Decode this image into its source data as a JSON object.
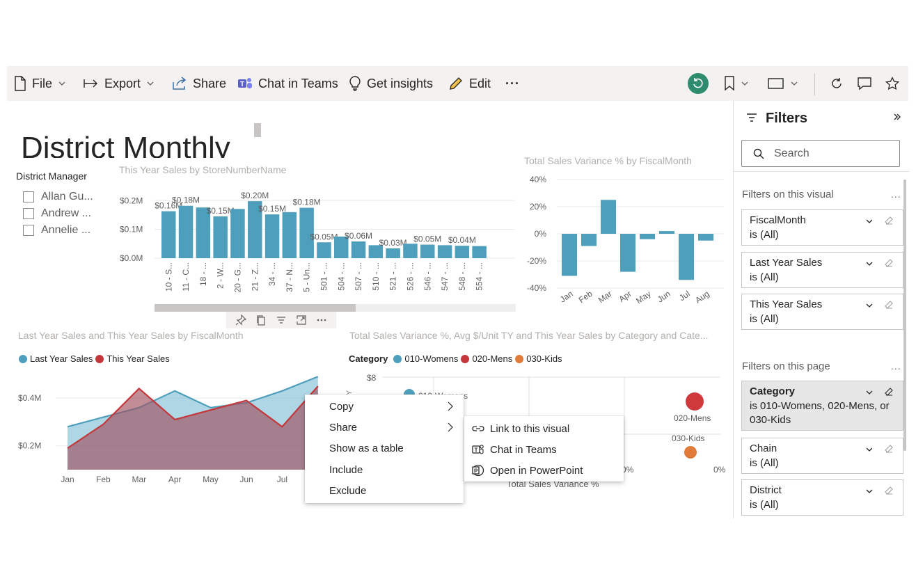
{
  "toolbar": {
    "file": "File",
    "export": "Export",
    "share": "Share",
    "chat_in_teams": "Chat in Teams",
    "get_insights": "Get insights",
    "edit": "Edit",
    "more": "···"
  },
  "colors": {
    "accent_teal": "#4e9fbc",
    "accent_red": "#c4373a",
    "accent_orange": "#e07b39",
    "refresh_green": "#2e8b6e",
    "toolbar_bg": "#f3f2f1"
  },
  "report": {
    "title": "District Monthly",
    "slicer": {
      "title": "District Manager",
      "items": [
        "Allan Gu...",
        "Andrew ...",
        "Annelie ..."
      ]
    }
  },
  "visuals": {
    "store_sales": {
      "title": "This Year Sales by StoreNumberName"
    },
    "variance_month": {
      "title": "Total Sales Variance % by FiscalMonth"
    },
    "area_chart": {
      "title": "Last Year Sales and This Year Sales by FiscalMonth",
      "legend": [
        "Last Year Sales",
        "This Year Sales"
      ]
    },
    "scatter": {
      "title": "Total Sales Variance %, Avg $/Unit TY and This Year Sales by Category and Cate...",
      "legend_title": "Category",
      "legend": [
        "010-Womens",
        "020-Mens",
        "030-Kids"
      ],
      "y_axis_letter": "Y",
      "ytick": "$8",
      "x_axis_label": "Total Sales Variance %",
      "xticks": [
        "0%",
        "0%"
      ],
      "point_labels": [
        "010-Womens",
        "020-Mens",
        "030-Kids"
      ]
    }
  },
  "chart_data": [
    {
      "type": "bar",
      "title": "This Year Sales by StoreNumberName",
      "categories": [
        "10 - S...",
        "11 - C...",
        "18 - ...",
        "2 - W...",
        "20 - G...",
        "21 - Z...",
        "34 - ...",
        "37 - N...",
        "5 - Un...",
        "501 - ...",
        "504 - ...",
        "507 - ...",
        "510 - ...",
        "521 - ...",
        "526 - ...",
        "546 - ...",
        "547 - ...",
        "548 - ...",
        "554 - ..."
      ],
      "values": [
        0.163,
        0.182,
        0.176,
        0.145,
        0.171,
        0.198,
        0.152,
        0.16,
        0.175,
        0.055,
        0.075,
        0.058,
        0.045,
        0.034,
        0.05,
        0.047,
        0.045,
        0.043,
        0.042
      ],
      "data_labels": [
        "$0.16M",
        "$0.18M",
        "",
        "$0.15M",
        "",
        "$0.20M",
        "$0.15M",
        "",
        "$0.18M",
        "$0.05M",
        "",
        "$0.06M",
        "",
        "$0.03M",
        "",
        "$0.05M",
        "",
        "$0.04M",
        ""
      ],
      "ylim": [
        0,
        0.22
      ],
      "yticks": [
        "$0.0M",
        "$0.1M",
        "$0.2M"
      ],
      "grid": true
    },
    {
      "type": "bar",
      "title": "Total Sales Variance % by FiscalMonth",
      "categories": [
        "Jan",
        "Feb",
        "Mar",
        "Apr",
        "May",
        "Jun",
        "Jul",
        "Aug"
      ],
      "values": [
        -31,
        -9,
        25,
        -28,
        -4,
        2,
        -34,
        -5
      ],
      "ylim": [
        -40,
        40
      ],
      "yticks": [
        "-40%",
        "-20%",
        "0%",
        "20%",
        "40%"
      ],
      "grid": true
    },
    {
      "type": "area",
      "title": "Last Year Sales and This Year Sales by FiscalMonth",
      "categories": [
        "Jan",
        "Feb",
        "Mar",
        "Apr",
        "May",
        "Jun",
        "Jul",
        "Aug"
      ],
      "series": [
        {
          "name": "Last Year Sales",
          "values": [
            0.28,
            0.32,
            0.36,
            0.43,
            0.36,
            0.38,
            0.43,
            0.49
          ]
        },
        {
          "name": "This Year Sales",
          "values": [
            0.19,
            0.29,
            0.44,
            0.31,
            0.35,
            0.39,
            0.28,
            0.45
          ]
        }
      ],
      "ylim": [
        0.1,
        0.5
      ],
      "yticks": [
        "$0.2M",
        "$0.4M"
      ],
      "grid": true
    }
  ],
  "context_menu": {
    "items": [
      "Copy",
      "Share",
      "Show as a table",
      "Include",
      "Exclude"
    ]
  },
  "share_submenu": {
    "items": [
      "Link to this visual",
      "Chat in Teams",
      "Open in PowerPoint"
    ]
  },
  "filters": {
    "title": "Filters",
    "search_placeholder": "Search",
    "visual_section": "Filters on this visual",
    "page_section": "Filters on this page",
    "more": "...",
    "visual_filters": [
      {
        "name": "FiscalMonth",
        "value": "is (All)"
      },
      {
        "name": "Last Year Sales",
        "value": "is (All)"
      },
      {
        "name": "This Year Sales",
        "value": "is (All)"
      }
    ],
    "page_filters": [
      {
        "name": "Category",
        "value": "is 010-Womens, 020-Mens, or 030-Kids"
      },
      {
        "name": "Chain",
        "value": "is (All)"
      },
      {
        "name": "District",
        "value": "is (All)"
      }
    ]
  }
}
